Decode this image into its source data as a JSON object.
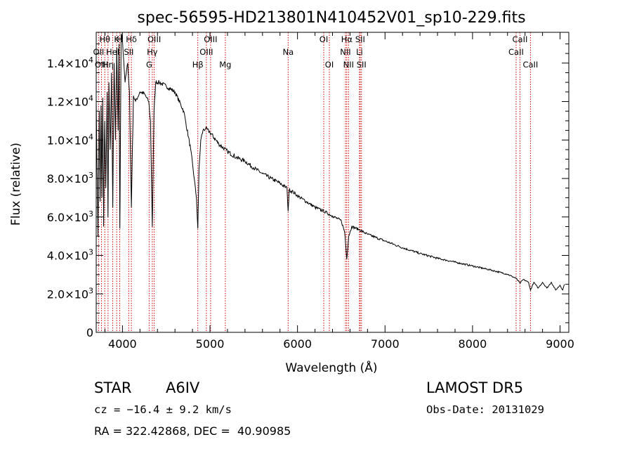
{
  "chart_data": {
    "type": "line",
    "title": "spec-56595-HD213801N410452V01_sp10-229.fits",
    "xlabel": "Wavelength (Å)",
    "ylabel": "Flux (relative)",
    "xlim": [
      3700,
      9100
    ],
    "ylim": [
      0,
      15600
    ],
    "grid": false,
    "x_ticks": [
      4000,
      5000,
      6000,
      7000,
      8000,
      9000
    ],
    "x_tick_labels": [
      "4000",
      "5000",
      "6000",
      "7000",
      "8000",
      "9000"
    ],
    "y_ticks": [
      {
        "value": 0,
        "mant": "0",
        "exp": ""
      },
      {
        "value": 2000,
        "mant": "2.0×10",
        "exp": "3"
      },
      {
        "value": 4000,
        "mant": "4.0×10",
        "exp": "3"
      },
      {
        "value": 6000,
        "mant": "6.0×10",
        "exp": "3"
      },
      {
        "value": 8000,
        "mant": "8.0×10",
        "exp": "3"
      },
      {
        "value": 10000,
        "mant": "1.0×10",
        "exp": "4"
      },
      {
        "value": 12000,
        "mant": "1.2×10",
        "exp": "4"
      },
      {
        "value": 14000,
        "mant": "1.4×10",
        "exp": "4"
      }
    ],
    "series": [
      {
        "color": "#000000",
        "x": [
          3700,
          3720,
          3735,
          3745,
          3755,
          3765,
          3775,
          3785,
          3797,
          3810,
          3825,
          3835,
          3845,
          3860,
          3875,
          3889,
          3905,
          3920,
          3935,
          3950,
          3960,
          3970,
          3985,
          4000,
          4030,
          4060,
          4080,
          4102,
          4125,
          4150,
          4200,
          4250,
          4300,
          4320,
          4341,
          4360,
          4380,
          4420,
          4500,
          4600,
          4700,
          4780,
          4820,
          4845,
          4861,
          4875,
          4895,
          4920,
          4950,
          5000,
          5100,
          5200,
          5300,
          5400,
          5500,
          5600,
          5700,
          5800,
          5880,
          5893,
          5905,
          5950,
          6000,
          6100,
          6200,
          6300,
          6400,
          6500,
          6540,
          6563,
          6585,
          6620,
          6700,
          6800,
          7000,
          7200,
          7400,
          7600,
          7800,
          8000,
          8200,
          8400,
          8500,
          8542,
          8580,
          8640,
          8662,
          8700,
          8750,
          8800,
          8850,
          8900,
          8950,
          9000,
          9030,
          9050
        ],
        "y": [
          12000,
          5000,
          11500,
          6800,
          11800,
          7000,
          12200,
          5500,
          11000,
          7500,
          12500,
          6000,
          13000,
          9500,
          13500,
          6500,
          14000,
          10000,
          14800,
          10500,
          15000,
          5400,
          15500,
          15200,
          13000,
          14000,
          12500,
          6500,
          12300,
          12000,
          12500,
          12400,
          12000,
          11000,
          5500,
          11500,
          13000,
          13000,
          12800,
          12500,
          11500,
          9500,
          8000,
          7000,
          5400,
          8500,
          10000,
          10500,
          10600,
          10400,
          9800,
          9400,
          9100,
          8900,
          8550,
          8250,
          8000,
          7750,
          7500,
          6300,
          7400,
          7300,
          7100,
          6800,
          6500,
          6300,
          6050,
          5800,
          5200,
          3800,
          5000,
          5500,
          5350,
          5100,
          4750,
          4400,
          4100,
          3850,
          3650,
          3450,
          3250,
          3020,
          2800,
          2550,
          2750,
          2600,
          2200,
          2600,
          2300,
          2600,
          2300,
          2600,
          2200,
          2450,
          2200,
          2500
        ]
      }
    ],
    "lines": [
      {
        "label": "Hθ",
        "wl": 3798,
        "row": 0
      },
      {
        "label": "OII",
        "wl": 3727,
        "row": 1
      },
      {
        "label": "OIII",
        "wl": 3760,
        "row": 2
      },
      {
        "label": "Hη",
        "wl": 3835,
        "row": 2
      },
      {
        "label": "HeI",
        "wl": 3889,
        "row": 1
      },
      {
        "label": "K",
        "wl": 3934,
        "row": 0
      },
      {
        "label": "H",
        "wl": 3969,
        "row": 0
      },
      {
        "label": "SII",
        "wl": 4072,
        "row": 1
      },
      {
        "label": "Hδ",
        "wl": 4102,
        "row": 0
      },
      {
        "label": "G",
        "wl": 4305,
        "row": 2
      },
      {
        "label": "Hγ",
        "wl": 4341,
        "row": 1
      },
      {
        "label": "OIII",
        "wl": 4363,
        "row": 0
      },
      {
        "label": "Hβ",
        "wl": 4861,
        "row": 2
      },
      {
        "label": "OIII",
        "wl": 4959,
        "row": 1
      },
      {
        "label": "OIII",
        "wl": 5007,
        "row": 0
      },
      {
        "label": "Mg",
        "wl": 5175,
        "row": 2
      },
      {
        "label": "Na",
        "wl": 5893,
        "row": 1
      },
      {
        "label": "OI",
        "wl": 6300,
        "row": 0
      },
      {
        "label": "OI",
        "wl": 6364,
        "row": 2
      },
      {
        "label": "NII",
        "wl": 6548,
        "row": 1
      },
      {
        "label": "Hα",
        "wl": 6563,
        "row": 0
      },
      {
        "label": "NII",
        "wl": 6583,
        "row": 2
      },
      {
        "label": "Li",
        "wl": 6708,
        "row": 1
      },
      {
        "label": "SII",
        "wl": 6716,
        "row": 0
      },
      {
        "label": "SII",
        "wl": 6731,
        "row": 2
      },
      {
        "label": "CaII",
        "wl": 8498,
        "row": 1
      },
      {
        "label": "CaII",
        "wl": 8542,
        "row": 0
      },
      {
        "label": "CaII",
        "wl": 8662,
        "row": 2
      }
    ],
    "line_color": "#cc0000"
  },
  "info": {
    "class_label": "STAR",
    "subclass": "A6IV",
    "survey": "LAMOST DR5",
    "cz_text": "cz = −16.4 ± 9.2 km/s",
    "obs_date": "Obs-Date: 20131029",
    "radec": "RA = 322.42868, DEC =  40.90985"
  }
}
